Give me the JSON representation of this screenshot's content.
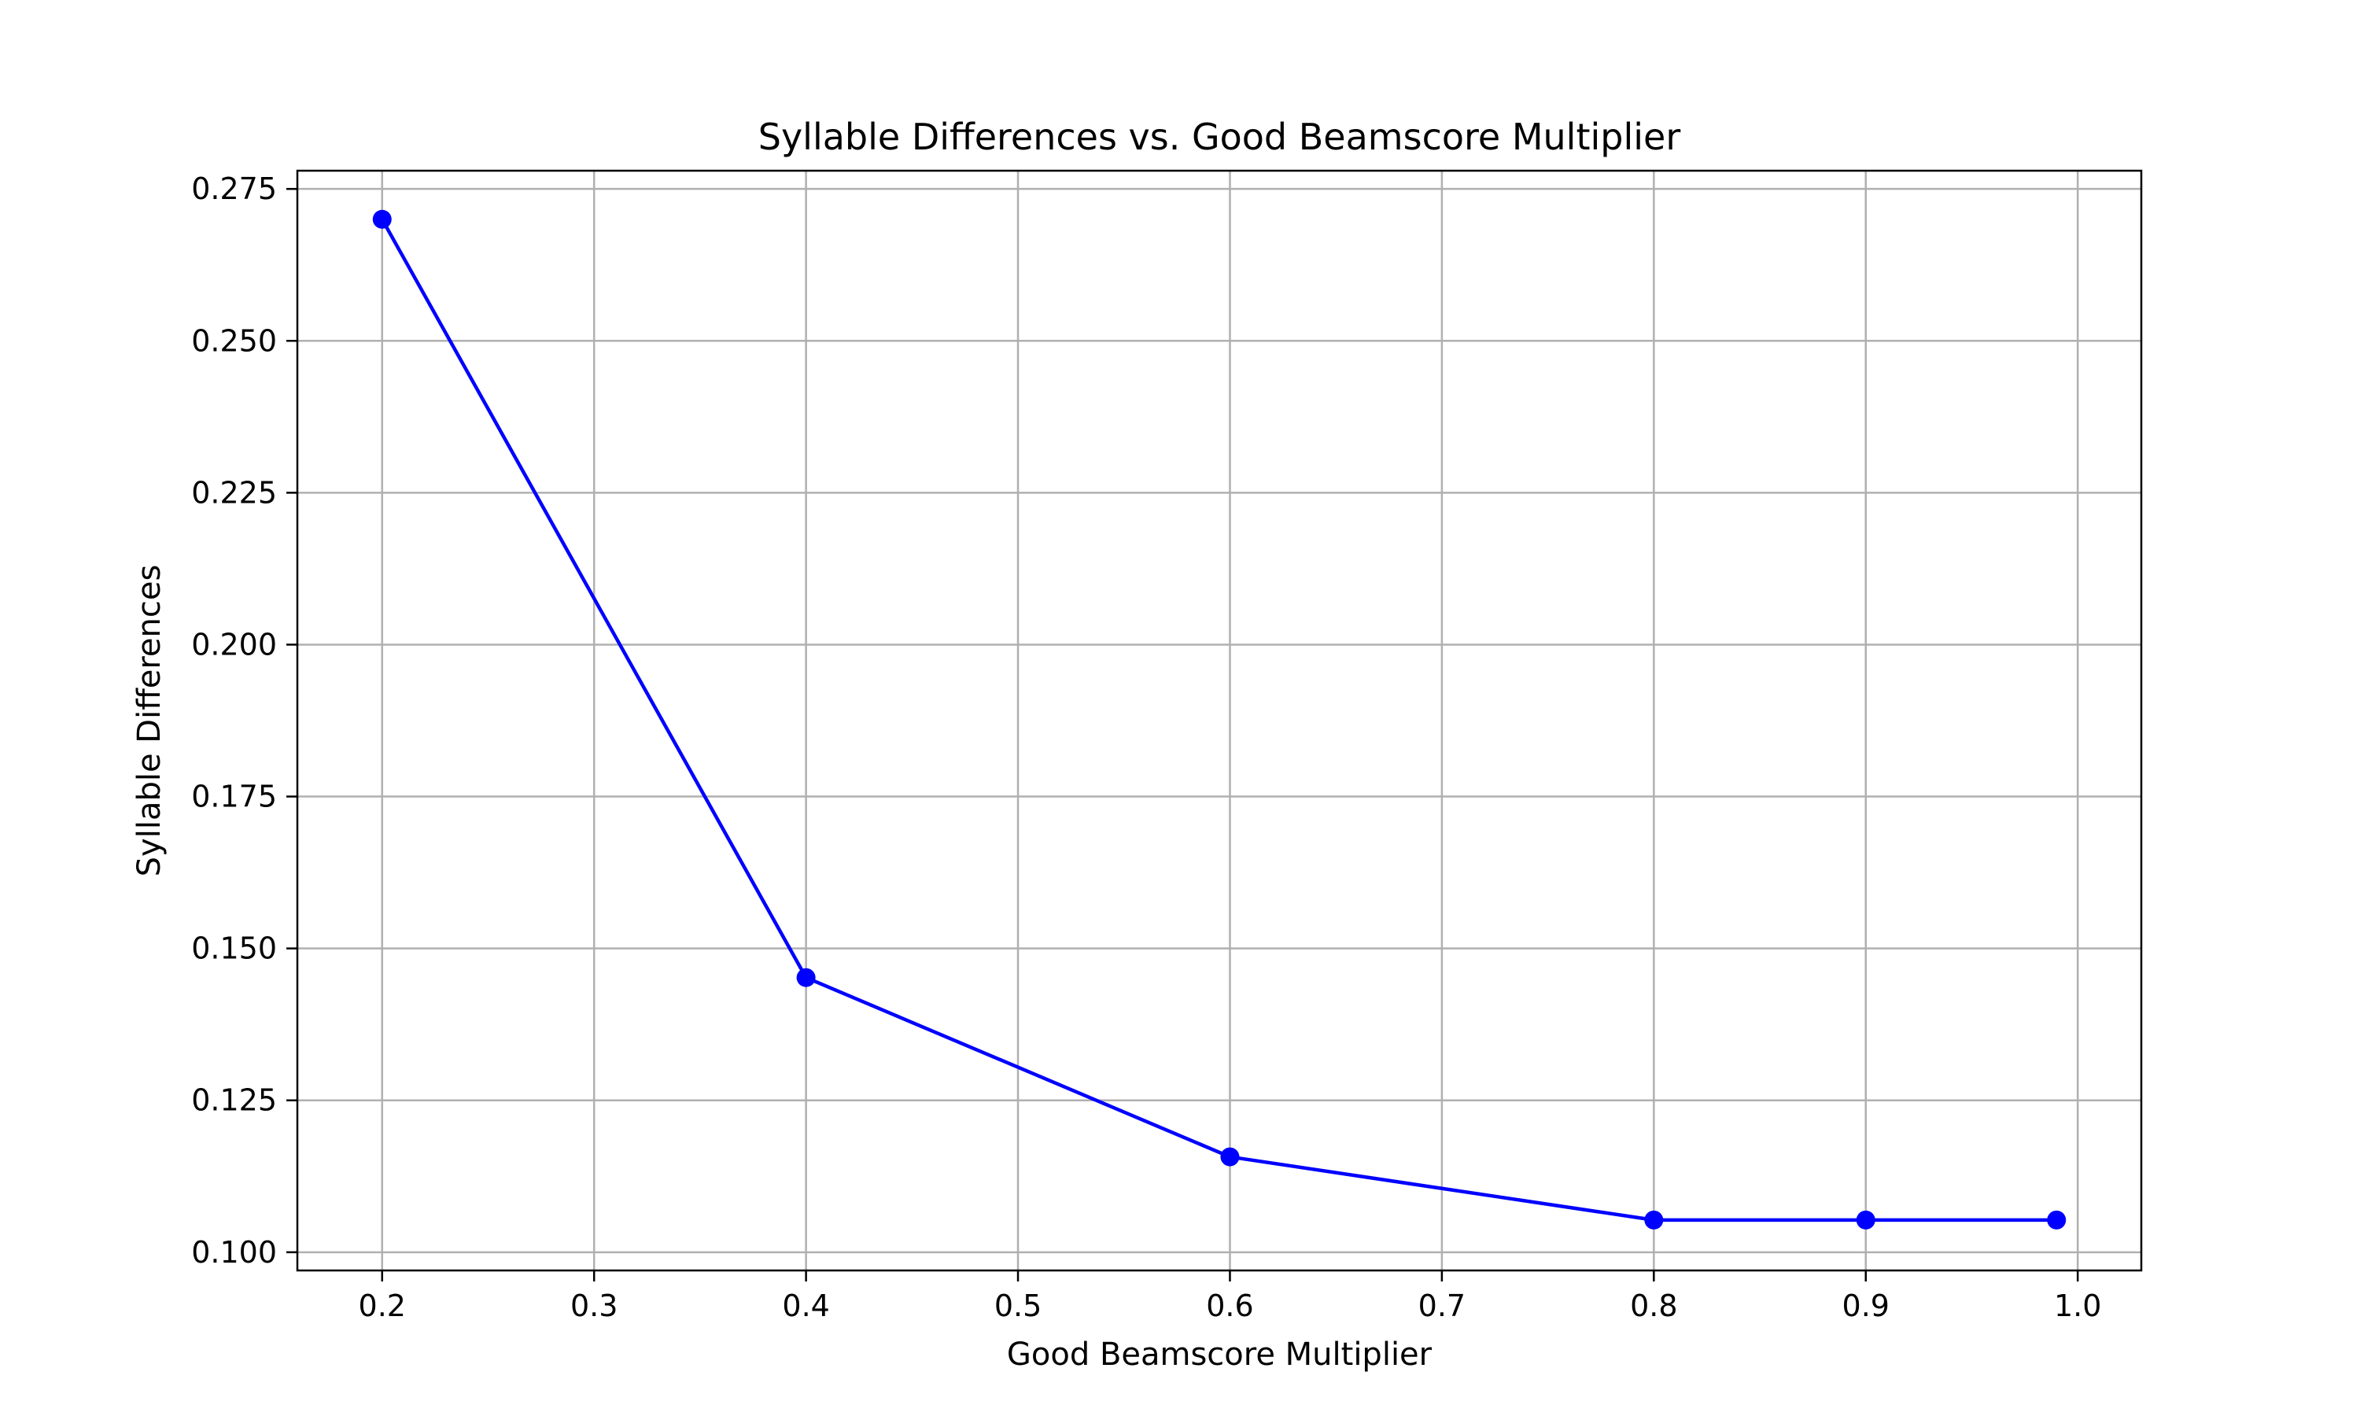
{
  "chart_data": {
    "type": "line",
    "title": "Syllable Differences vs. Good Beamscore Multiplier",
    "xlabel": "Good Beamscore Multiplier",
    "ylabel": "Syllable Differences",
    "x": [
      0.2,
      0.4,
      0.6,
      0.8,
      0.9,
      0.99
    ],
    "series": [
      {
        "values": [
          0.27,
          0.1452,
          0.1157,
          0.1053,
          0.1053,
          0.1053
        ],
        "color": "#0000ff",
        "marker": "circle"
      }
    ],
    "xlim": [
      0.16,
      1.03
    ],
    "ylim": [
      0.097,
      0.278
    ],
    "xticks": [
      0.2,
      0.3,
      0.4,
      0.5,
      0.6,
      0.7,
      0.8,
      0.9,
      1.0
    ],
    "xtick_labels": [
      "0.2",
      "0.3",
      "0.4",
      "0.5",
      "0.6",
      "0.7",
      "0.8",
      "0.9",
      "1.0"
    ],
    "yticks": [
      0.1,
      0.125,
      0.15,
      0.175,
      0.2,
      0.225,
      0.25,
      0.275
    ],
    "ytick_labels": [
      "0.100",
      "0.125",
      "0.150",
      "0.175",
      "0.200",
      "0.225",
      "0.250",
      "0.275"
    ],
    "grid": true,
    "grid_color": "#b0b0b0",
    "legend": false
  }
}
